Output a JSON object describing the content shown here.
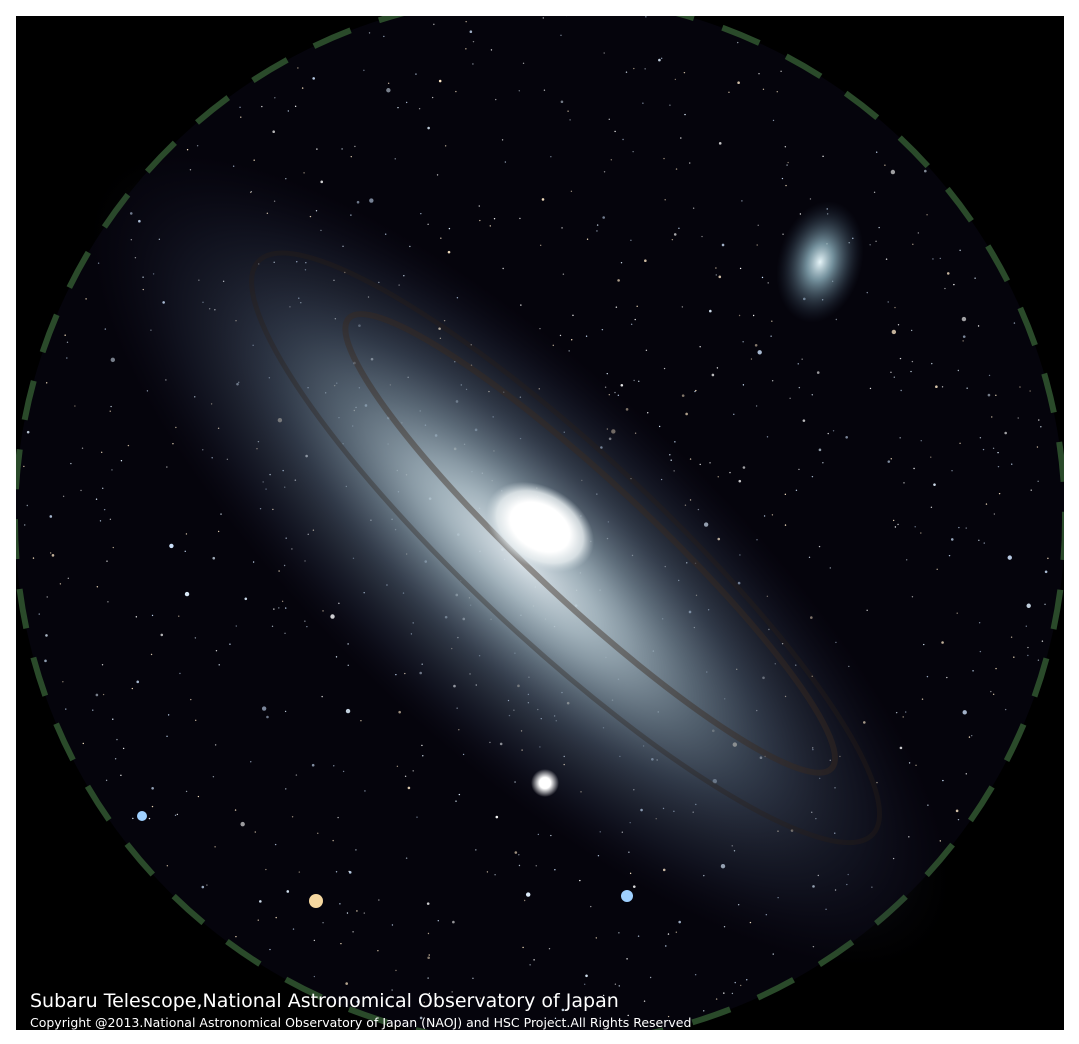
{
  "credit": {
    "line1": "Subaru Telescope,National Astronomical Observatory of Japan",
    "line2": "Copyright @2013.National Astronomical Observatory of Japan (NAOJ) and HSC Project.All Rights Reserved"
  }
}
